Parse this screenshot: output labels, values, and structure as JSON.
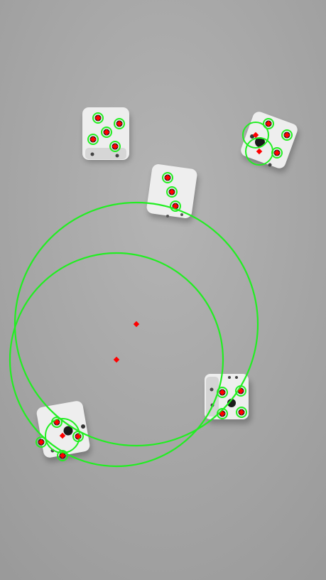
{
  "image": {
    "kind": "grayscale photo of dice with circle-detection overlay",
    "background_color": "#a9a9a9",
    "die_color": "#efefef",
    "pip_color": "#1a1a1a",
    "detection_circle_color": "#22ee22",
    "center_marker_color": "#ff0000"
  },
  "dice": [
    {
      "label": "die-five-top-left",
      "pips_detected": 5
    },
    {
      "label": "die-five-top-right",
      "pips_detected": 5
    },
    {
      "label": "die-three-middle",
      "pips_detected": 3
    },
    {
      "label": "die-five-bottom-right",
      "pips_detected": 5
    },
    {
      "label": "die-five-bottom-left",
      "pips_detected": 5
    }
  ],
  "large_false_detections": 2
}
